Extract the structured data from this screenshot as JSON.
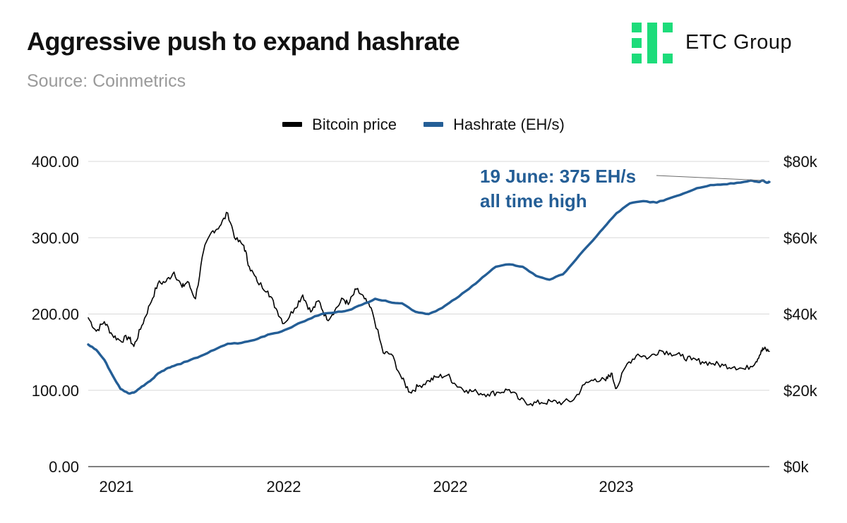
{
  "header": {
    "title": "Aggressive push to expand hashrate",
    "subtitle": "Source: Coinmetrics"
  },
  "brand": {
    "name": "ETC Group",
    "color": "#1ddc7a"
  },
  "chart_data": {
    "type": "line",
    "title": "Aggressive push to expand hashrate",
    "x_tick_labels": [
      "2021",
      "2022",
      "2022",
      "2023"
    ],
    "y_left": {
      "label": "Hashrate (EH/s)",
      "range": [
        0,
        400
      ],
      "ticks": [
        "0.00",
        "100.00",
        "200.00",
        "300.00",
        "400.00"
      ]
    },
    "y_right": {
      "label": "Bitcoin price",
      "range": [
        0,
        80000
      ],
      "ticks": [
        "$0k",
        "$20k",
        "$40k",
        "$60k",
        "$80k"
      ]
    },
    "grid": true,
    "legend_position": "top-center",
    "x_time_range": [
      2020.93,
      2023.47
    ],
    "series": [
      {
        "name": "Bitcoin price",
        "axis": "right",
        "color": "#000000",
        "x": [
          2020.93,
          2020.96,
          2020.99,
          2021.02,
          2021.05,
          2021.08,
          2021.1,
          2021.13,
          2021.16,
          2021.19,
          2021.22,
          2021.25,
          2021.28,
          2021.3,
          2021.33,
          2021.36,
          2021.39,
          2021.42,
          2021.45,
          2021.48,
          2021.51,
          2021.53,
          2021.56,
          2021.6,
          2021.63,
          2021.66,
          2021.7,
          2021.73,
          2021.76,
          2021.79,
          2021.82,
          2021.85,
          2021.88,
          2021.9,
          2021.93,
          2021.96,
          2021.99,
          2022.03,
          2022.06,
          2022.1,
          2022.13,
          2022.16,
          2022.2,
          2022.23,
          2022.27,
          2022.3,
          2022.34,
          2022.38,
          2022.42,
          2022.46,
          2022.5,
          2022.54,
          2022.58,
          2022.62,
          2022.66,
          2022.7,
          2022.74,
          2022.78,
          2022.82,
          2022.86,
          2022.88,
          2022.9,
          2022.94,
          2022.98,
          2023.02,
          2023.06,
          2023.1,
          2023.14,
          2023.18,
          2023.22,
          2023.26,
          2023.3,
          2023.34,
          2023.38,
          2023.42,
          2023.44,
          2023.45,
          2023.47
        ],
        "values": [
          39000,
          35500,
          38000,
          34500,
          33000,
          34000,
          31500,
          37000,
          42500,
          48000,
          48500,
          51000,
          47000,
          48500,
          44000,
          56500,
          61500,
          63000,
          66500,
          59500,
          58000,
          52500,
          48500,
          46000,
          41500,
          37500,
          41500,
          45000,
          40500,
          43500,
          38500,
          41000,
          44000,
          42500,
          46500,
          44000,
          40500,
          29800,
          29500,
          23000,
          19500,
          21000,
          22500,
          23500,
          24000,
          21500,
          20000,
          19500,
          19000,
          19500,
          20200,
          17500,
          16500,
          16800,
          17000,
          16800,
          17500,
          21500,
          23000,
          22500,
          24500,
          20500,
          27000,
          29500,
          28500,
          30500,
          29800,
          29000,
          28000,
          27500,
          27000,
          26500,
          26200,
          25500,
          27500,
          30500,
          30800,
          30200
        ]
      },
      {
        "name": "Hashrate (EH/s)",
        "axis": "left",
        "color": "#245e96",
        "x": [
          2020.93,
          2020.96,
          2020.99,
          2021.02,
          2021.05,
          2021.08,
          2021.1,
          2021.13,
          2021.16,
          2021.19,
          2021.22,
          2021.25,
          2021.3,
          2021.35,
          2021.4,
          2021.45,
          2021.5,
          2021.55,
          2021.6,
          2021.65,
          2021.7,
          2021.75,
          2021.8,
          2021.85,
          2021.9,
          2021.95,
          2022.0,
          2022.05,
          2022.1,
          2022.15,
          2022.2,
          2022.25,
          2022.3,
          2022.35,
          2022.4,
          2022.45,
          2022.5,
          2022.55,
          2022.6,
          2022.65,
          2022.7,
          2022.75,
          2022.8,
          2022.85,
          2022.9,
          2022.95,
          2023.0,
          2023.05,
          2023.1,
          2023.15,
          2023.2,
          2023.25,
          2023.3,
          2023.35,
          2023.4,
          2023.43,
          2023.445,
          2023.46,
          2023.47
        ],
        "values": [
          160,
          153,
          140,
          120,
          102,
          96,
          97,
          105,
          112,
          122,
          128,
          132,
          138,
          145,
          153,
          161,
          162,
          166,
          173,
          177,
          185,
          193,
          200,
          202,
          205,
          212,
          220,
          216,
          214,
          203,
          200,
          208,
          220,
          233,
          248,
          262,
          265,
          262,
          250,
          245,
          252,
          272,
          292,
          312,
          332,
          345,
          348,
          346,
          352,
          358,
          365,
          369,
          370,
          372,
          375,
          373,
          375,
          372,
          373
        ]
      }
    ],
    "annotation": {
      "line1": "19 June: 375 EH/s",
      "line2": "all time high",
      "x": 2023.45,
      "value": 375,
      "axis": "left",
      "color": "#245e96"
    }
  }
}
